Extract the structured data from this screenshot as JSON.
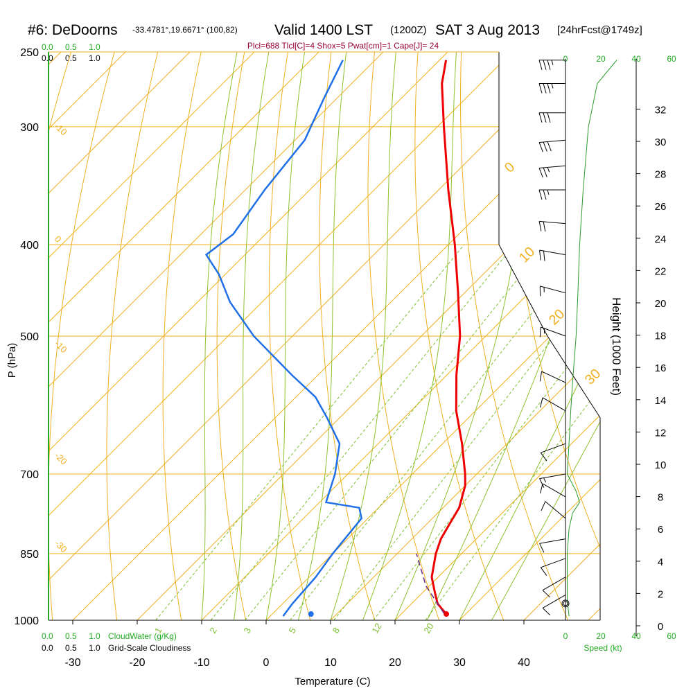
{
  "header": {
    "station": "#6: DeDoorns",
    "coords": "-33.4781°,19.6671° (100,82)",
    "valid": "Valid 1400 LST",
    "zulu": "(1200Z)",
    "date": "SAT 3 Aug 2013",
    "forecast": "[24hrFcst@1749z]",
    "params": "Plcl=688 Tlcl[C]=4 Shox=5 Pwat[cm]=1 Cape[J]= 24"
  },
  "colors": {
    "isobar": "#f0b020",
    "isotherm": "#f0b020",
    "dry_adiabat": "#8fc030",
    "mixing_ratio": "#7cc030",
    "temperature": "#ee0000",
    "dewpoint": "#1e6fe8",
    "parcel": "#6a2a8a",
    "cloud": "#22aa22",
    "speed": "#2a9a2a",
    "params": "#990033"
  },
  "left_scales": {
    "top_row1": [
      "0.0",
      "0.5",
      "1.0"
    ],
    "top_row2": [
      "0.0",
      "0.5",
      "1.0"
    ],
    "bottom_row1": [
      "0.0",
      "0.5",
      "1.0"
    ],
    "cloudwater_label": "CloudWater (g/Kg)",
    "bottom_row2": [
      "0.0",
      "0.5",
      "1.0"
    ],
    "cloudiness_label": "Grid-Scale Cloudiness"
  },
  "right_panel": {
    "speed_ticks_top": [
      "0",
      "20",
      "40",
      "60"
    ],
    "speed_ticks_bottom": [
      "0",
      "20",
      "40",
      "60"
    ],
    "speed_label": "Speed (kt)"
  },
  "chart_data": {
    "type": "skew-t",
    "ylabel": "P (hPa)",
    "xlabel": "Temperature (C)",
    "y2label": "Height (1000 Feet)",
    "pressure_ticks": [
      {
        "p": 250,
        "label": "250"
      },
      {
        "p": 300,
        "label": "300"
      },
      {
        "p": 400,
        "label": "400"
      },
      {
        "p": 500,
        "label": "500"
      },
      {
        "p": 700,
        "label": "700"
      },
      {
        "p": 850,
        "label": "850"
      },
      {
        "p": 1000,
        "label": "1000"
      }
    ],
    "temperature_ticks": [
      -30,
      -20,
      -10,
      0,
      10,
      20,
      30,
      40
    ],
    "height_ticks_kft": [
      0,
      2,
      4,
      6,
      8,
      10,
      12,
      14,
      16,
      18,
      20,
      22,
      24,
      26,
      28,
      30,
      32
    ],
    "isotherm_labels": [
      {
        "t": -10,
        "label": "-10"
      },
      {
        "t": 0,
        "label": "0"
      },
      {
        "t": -10,
        "label": "-10"
      },
      {
        "t": -20,
        "label": "-20"
      },
      {
        "t": -30,
        "label": "-30"
      },
      {
        "t": 0,
        "label": "0"
      },
      {
        "t": 10,
        "label": "10"
      },
      {
        "t": 20,
        "label": "20"
      },
      {
        "t": 30,
        "label": "30"
      }
    ],
    "mixing_ratio_labels": [
      "1",
      "2",
      "3",
      "5",
      "8",
      "12",
      "20"
    ],
    "temperature_profile": [
      {
        "p": 985,
        "t": 27
      },
      {
        "p": 960,
        "t": 24
      },
      {
        "p": 930,
        "t": 21.5
      },
      {
        "p": 900,
        "t": 19
      },
      {
        "p": 850,
        "t": 16
      },
      {
        "p": 820,
        "t": 14.5
      },
      {
        "p": 790,
        "t": 13.5
      },
      {
        "p": 760,
        "t": 12.5
      },
      {
        "p": 720,
        "t": 10
      },
      {
        "p": 700,
        "t": 8.2
      },
      {
        "p": 650,
        "t": 3
      },
      {
        "p": 600,
        "t": -3
      },
      {
        "p": 550,
        "t": -8.5
      },
      {
        "p": 500,
        "t": -14
      },
      {
        "p": 450,
        "t": -21
      },
      {
        "p": 400,
        "t": -29
      },
      {
        "p": 350,
        "t": -38.5
      },
      {
        "p": 300,
        "t": -49
      },
      {
        "p": 270,
        "t": -56
      },
      {
        "p": 255,
        "t": -59
      }
    ],
    "dewpoint_profile": [
      {
        "p": 990,
        "t": 2
      },
      {
        "p": 960,
        "t": 1.5
      },
      {
        "p": 900,
        "t": 1
      },
      {
        "p": 850,
        "t": 0
      },
      {
        "p": 780,
        "t": -1
      },
      {
        "p": 760,
        "t": -3
      },
      {
        "p": 750,
        "t": -9
      },
      {
        "p": 700,
        "t": -12
      },
      {
        "p": 650,
        "t": -16
      },
      {
        "p": 610,
        "t": -22
      },
      {
        "p": 580,
        "t": -27
      },
      {
        "p": 550,
        "t": -34
      },
      {
        "p": 500,
        "t": -46
      },
      {
        "p": 460,
        "t": -55
      },
      {
        "p": 430,
        "t": -61
      },
      {
        "p": 410,
        "t": -66
      },
      {
        "p": 390,
        "t": -65
      },
      {
        "p": 350,
        "t": -67
      },
      {
        "p": 310,
        "t": -68.5
      },
      {
        "p": 280,
        "t": -72
      },
      {
        "p": 255,
        "t": -75
      }
    ],
    "parcel_profile": [
      {
        "p": 983,
        "t": 26.5
      },
      {
        "p": 920,
        "t": 19.5
      },
      {
        "p": 850,
        "t": 13
      }
    ],
    "surface_temperature": {
      "p": 985,
      "t": 27
    },
    "surface_dewpoint": {
      "p": 985,
      "t": 6
    },
    "wind_speed_kt": [
      {
        "p": 990,
        "v": 2
      },
      {
        "p": 950,
        "v": 1
      },
      {
        "p": 900,
        "v": 1
      },
      {
        "p": 850,
        "v": 1
      },
      {
        "p": 800,
        "v": 2
      },
      {
        "p": 770,
        "v": 4
      },
      {
        "p": 750,
        "v": 8
      },
      {
        "p": 730,
        "v": 6
      },
      {
        "p": 700,
        "v": 1
      },
      {
        "p": 650,
        "v": 2
      },
      {
        "p": 600,
        "v": 3
      },
      {
        "p": 560,
        "v": 4
      },
      {
        "p": 500,
        "v": 6
      },
      {
        "p": 450,
        "v": 7
      },
      {
        "p": 400,
        "v": 8
      },
      {
        "p": 350,
        "v": 10
      },
      {
        "p": 300,
        "v": 13
      },
      {
        "p": 270,
        "v": 18
      },
      {
        "p": 255,
        "v": 29
      }
    ],
    "wind_barbs": [
      {
        "p": 255,
        "dir": 270,
        "spd": 35
      },
      {
        "p": 270,
        "dir": 270,
        "spd": 35
      },
      {
        "p": 290,
        "dir": 270,
        "spd": 30
      },
      {
        "p": 310,
        "dir": 265,
        "spd": 30
      },
      {
        "p": 330,
        "dir": 265,
        "spd": 25
      },
      {
        "p": 350,
        "dir": 270,
        "spd": 25
      },
      {
        "p": 380,
        "dir": 275,
        "spd": 20
      },
      {
        "p": 410,
        "dir": 280,
        "spd": 20
      },
      {
        "p": 450,
        "dir": 285,
        "spd": 15
      },
      {
        "p": 500,
        "dir": 290,
        "spd": 15
      },
      {
        "p": 560,
        "dir": 295,
        "spd": 10
      },
      {
        "p": 600,
        "dir": 300,
        "spd": 10
      },
      {
        "p": 650,
        "dir": 250,
        "spd": 10
      },
      {
        "p": 700,
        "dir": 260,
        "spd": 15
      },
      {
        "p": 740,
        "dir": 300,
        "spd": 10
      },
      {
        "p": 780,
        "dir": 310,
        "spd": 10
      },
      {
        "p": 820,
        "dir": 260,
        "spd": 10
      },
      {
        "p": 860,
        "dir": 250,
        "spd": 10
      },
      {
        "p": 900,
        "dir": 240,
        "spd": 10
      },
      {
        "p": 940,
        "dir": 240,
        "spd": 10
      }
    ]
  }
}
